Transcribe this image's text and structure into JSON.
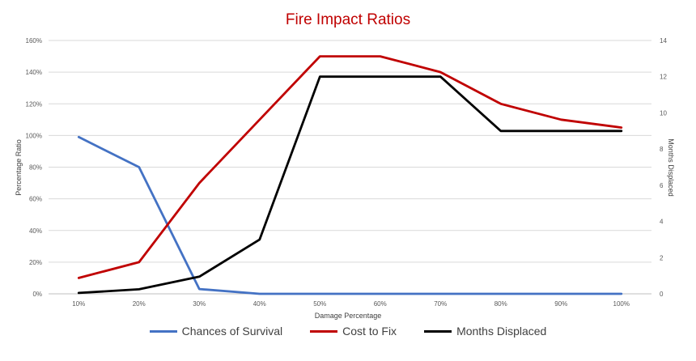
{
  "chart_data": {
    "type": "line",
    "title": "Fire Impact Ratios",
    "xlabel": "Damage Percentage",
    "ylabel": "Percentage Ratio",
    "y2label": "Months  Displaced",
    "categories": [
      "10%",
      "20%",
      "30%",
      "40%",
      "50%",
      "60%",
      "70%",
      "80%",
      "90%",
      "100%"
    ],
    "ylim": [
      0,
      160
    ],
    "y_ticks": [
      "0%",
      "20%",
      "40%",
      "60%",
      "80%",
      "100%",
      "120%",
      "140%",
      "160%"
    ],
    "y2lim": [
      0,
      14
    ],
    "y2_ticks": [
      "0",
      "2",
      "4",
      "6",
      "8",
      "10",
      "12",
      "14"
    ],
    "grid": true,
    "legend_position": "bottom",
    "series": [
      {
        "name": "Chances of Survival",
        "axis": "left",
        "color": "#4472c4",
        "values": [
          99,
          80,
          3,
          0,
          0,
          0,
          0,
          0,
          0,
          0
        ]
      },
      {
        "name": "Cost to Fix",
        "axis": "left",
        "color": "#c00000",
        "values": [
          10,
          20,
          70,
          110,
          150,
          150,
          140,
          120,
          110,
          105
        ]
      },
      {
        "name": "Months Displaced",
        "axis": "right",
        "color": "#000000",
        "values": [
          0.05,
          0.25,
          0.95,
          3,
          12,
          12,
          12,
          9,
          9,
          9
        ]
      }
    ]
  }
}
